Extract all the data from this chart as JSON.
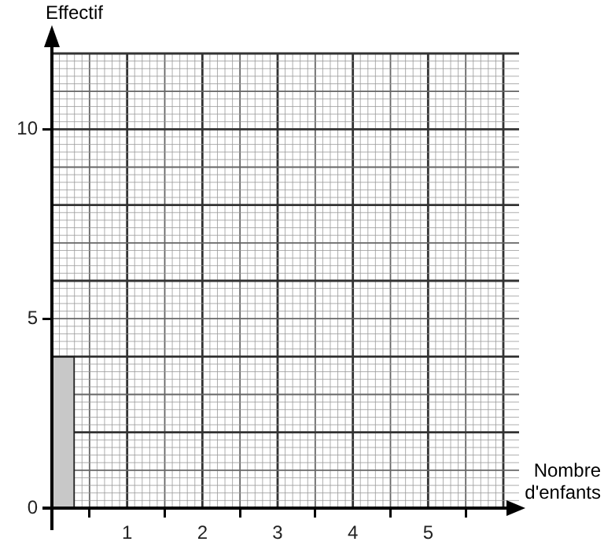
{
  "chart_data": {
    "type": "histogram",
    "xlabel": "Nombre d'enfants",
    "ylabel": "Effectif",
    "bins": [
      0,
      0.3
    ],
    "values": [
      4
    ],
    "color": "#c8c8c8",
    "xlim": [
      0,
      6
    ],
    "xticks": [
      1,
      2,
      3,
      4,
      5
    ],
    "ylim": [
      0,
      12
    ],
    "yticks": [
      0,
      5,
      10
    ],
    "grid": true
  }
}
